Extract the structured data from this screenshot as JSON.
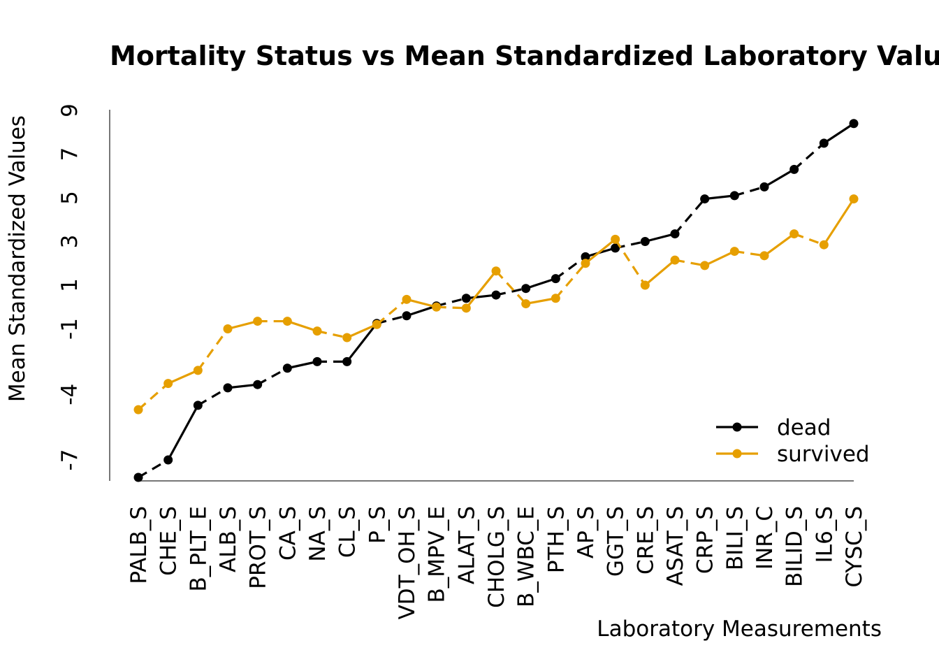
{
  "chart_data": {
    "type": "line",
    "title": "Mortality Status vs Mean Standardized Laboratory Values",
    "xlabel": "Laboratory Measurements",
    "ylabel": "Mean Standardized Values",
    "categories": [
      "PALB_S",
      "CHE_S",
      "B_PLT_E",
      "ALB_S",
      "PROT_S",
      "CA_S",
      "NA_S",
      "CL_S",
      "P_S",
      "VDT_OH_S",
      "B_MPV_E",
      "ALAT_S",
      "CHOLG_S",
      "B_WBC_E",
      "PTH_S",
      "AP_S",
      "GGT_S",
      "CRE_S",
      "ASAT_S",
      "CRP_S",
      "BILI_S",
      "INR_C",
      "BILID_S",
      "IL6_S",
      "CYSC_S"
    ],
    "yticks": [
      -7,
      -4,
      -1,
      1,
      3,
      5,
      7,
      9
    ],
    "ylim": [
      -7,
      9
    ],
    "grid": false,
    "legend_position": "bottom-right",
    "series": [
      {
        "name": "dead",
        "color": "#000000",
        "values": [
          -7.8,
          -7.0,
          -4.5,
          -3.7,
          -3.55,
          -2.8,
          -2.5,
          -2.5,
          -0.75,
          -0.4,
          0.05,
          0.4,
          0.55,
          0.85,
          1.3,
          2.3,
          2.7,
          3.0,
          3.35,
          4.95,
          5.1,
          5.5,
          6.3,
          7.5,
          8.4
        ]
      },
      {
        "name": "survived",
        "color": "#E69F00",
        "values": [
          -4.7,
          -3.5,
          -2.9,
          -1.0,
          -0.65,
          -0.65,
          -1.1,
          -1.4,
          -0.8,
          0.35,
          0.0,
          -0.05,
          1.65,
          0.15,
          0.4,
          2.0,
          3.1,
          1.0,
          2.15,
          1.9,
          2.55,
          2.35,
          3.35,
          2.85,
          4.95
        ]
      }
    ]
  }
}
